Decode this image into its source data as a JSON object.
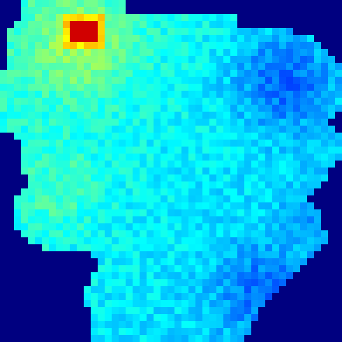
{
  "colormap": "jet",
  "background_color": "#000080",
  "raster": {
    "columns": 49,
    "rows": 49,
    "value_range": [
      0,
      1
    ],
    "hotspot_value": 0.92,
    "background_value": 0
  }
}
